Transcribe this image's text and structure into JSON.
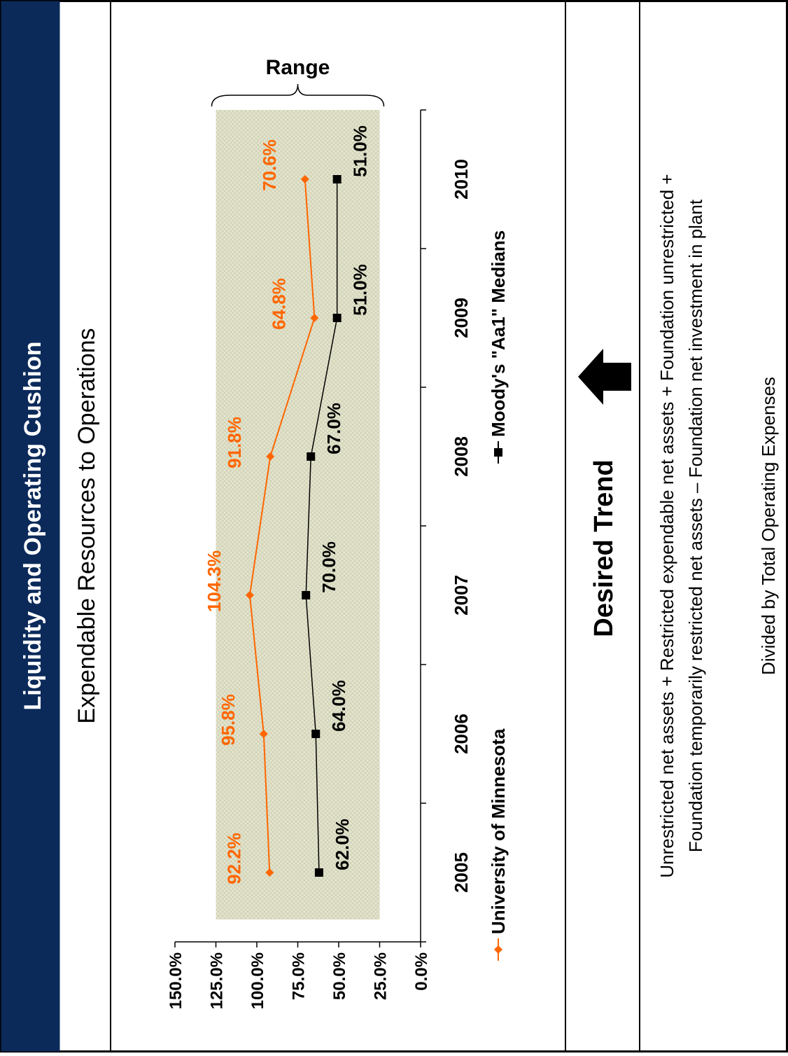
{
  "header": {
    "title": "Liquidity and Operating Cushion"
  },
  "subtitle": "Expendable Resources to Operations",
  "range_label": "Range",
  "desired_trend_label": "Desired Trend",
  "footer": {
    "line1": "Unrestricted net assets + Restricted expendable net assets + Foundation unrestricted +",
    "line2": "Foundation temporarily restricted net assets – Foundation net investment in plant",
    "line3": "Divided by Total Operating Expenses"
  },
  "colors": {
    "header_bg": "#0b2a5a",
    "umn": "#ff6600",
    "moodys": "#000000",
    "range_band": "#dedfc8"
  },
  "chart_data": {
    "type": "line",
    "categories": [
      "2005",
      "2006",
      "2007",
      "2008",
      "2009",
      "2010"
    ],
    "series": [
      {
        "name": "University of Minnesota",
        "values": [
          92.2,
          95.8,
          104.3,
          91.8,
          64.8,
          70.6
        ],
        "labels": [
          "92.2%",
          "95.8%",
          "104.3%",
          "91.8%",
          "64.8%",
          "70.6%"
        ]
      },
      {
        "name": "Moody's \"Aa1\" Medians",
        "values": [
          62.0,
          64.0,
          70.0,
          67.0,
          51.0,
          51.0
        ],
        "labels": [
          "62.0%",
          "64.0%",
          "70.0%",
          "67.0%",
          "51.0%",
          "51.0%"
        ]
      }
    ],
    "ylim": [
      0,
      150
    ],
    "yticks": [
      "0.0%",
      "25.0%",
      "50.0%",
      "75.0%",
      "100.0%",
      "125.0%",
      "150.0%"
    ],
    "range_band": [
      25,
      125
    ],
    "legend_position": "bottom",
    "grid": false
  }
}
